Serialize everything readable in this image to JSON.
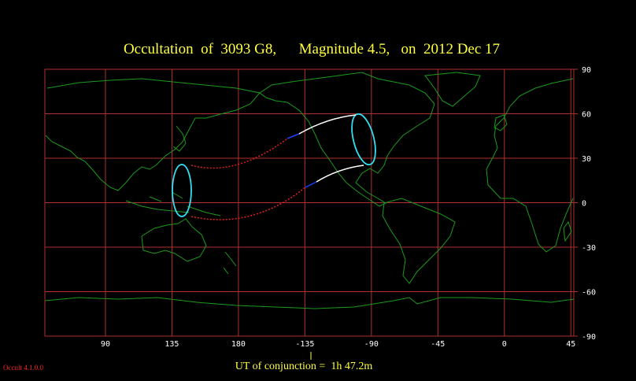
{
  "map": {
    "title": "Occultation  of  3093 G8,      Magnitude 4.5,   on  2012 Dec 17",
    "footer": "UT of conjunction =  1h 47.2m",
    "version": "Occult 4.1.0.0",
    "xlim": [
      49,
      407
    ],
    "ylim": [
      -90,
      90
    ],
    "xticks": [
      90,
      135,
      180,
      {
        "value": 225,
        "label": "-135"
      },
      {
        "value": 270,
        "label": "-90"
      },
      {
        "value": 315,
        "label": "-45"
      },
      {
        "value": 360,
        "label": "0"
      },
      {
        "value": 405,
        "label": "45"
      }
    ],
    "yticks": [
      90,
      60,
      30,
      0,
      -30,
      -60,
      -90
    ]
  }
}
